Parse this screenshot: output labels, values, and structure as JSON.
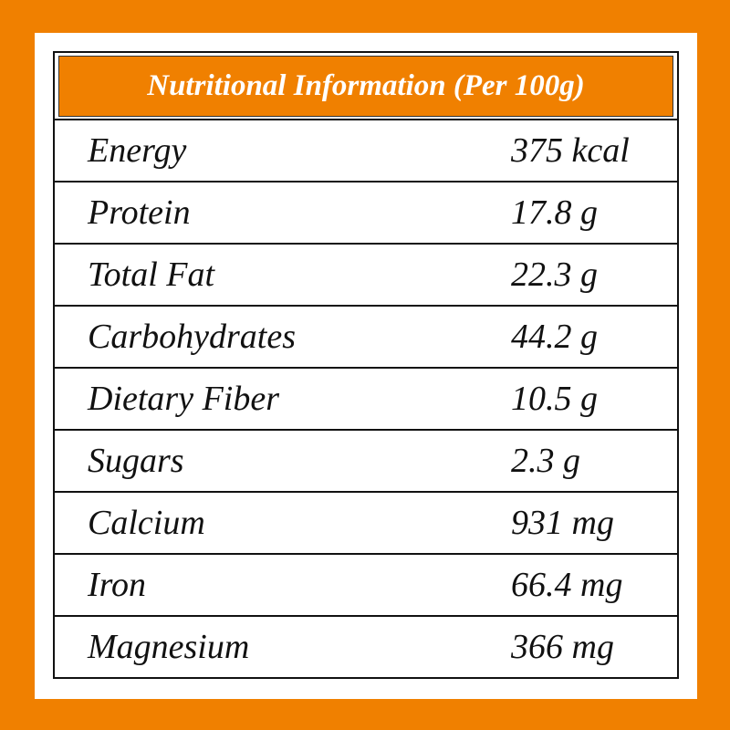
{
  "header": {
    "title": "Nutritional Information (Per 100g)"
  },
  "table": {
    "rows": [
      [
        "Energy",
        "375 kcal"
      ],
      [
        "Protein",
        "17.8 g"
      ],
      [
        "Total Fat",
        "22.3 g"
      ],
      [
        "Carbohydrates",
        "44.2 g"
      ],
      [
        "Dietary Fiber",
        "10.5 g"
      ],
      [
        "Sugars",
        "2.3 g"
      ],
      [
        "Calcium",
        "931 mg"
      ],
      [
        "Iron",
        "66.4 mg"
      ],
      [
        "Magnesium",
        "366 mg"
      ]
    ]
  }
}
